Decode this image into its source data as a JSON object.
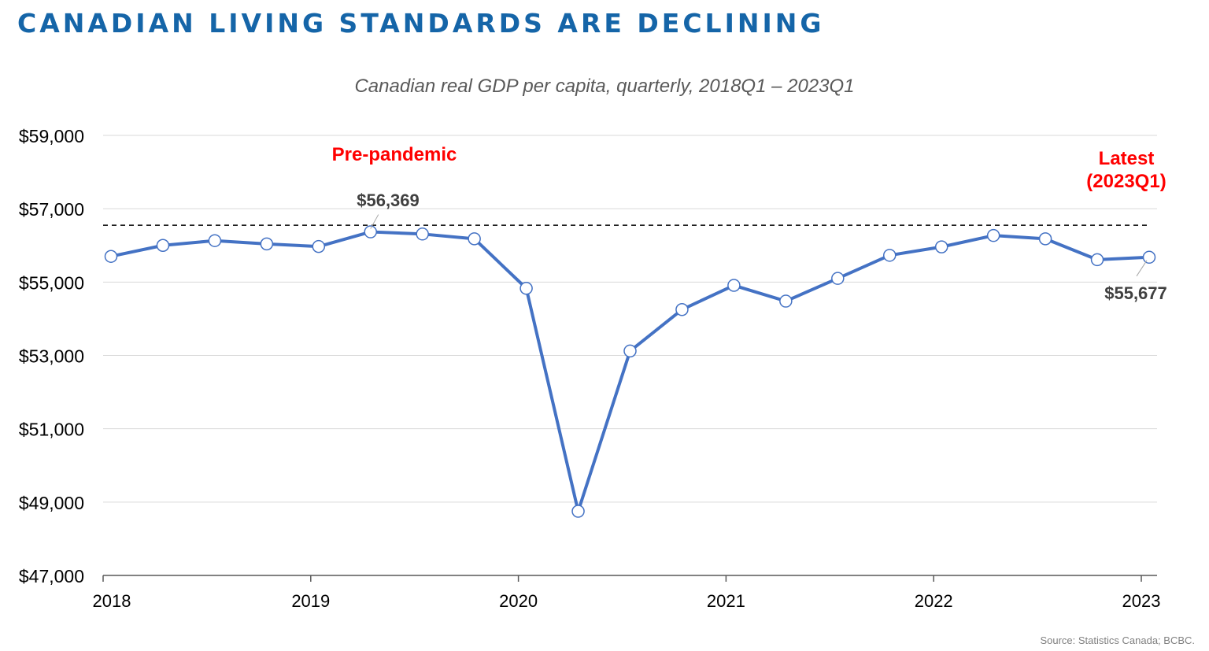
{
  "page": {
    "title": "CANADIAN LIVING STANDARDS ARE DECLINING",
    "source": "Source: Statistics Canada; BCBC."
  },
  "chart_data": {
    "type": "line",
    "title": "",
    "subtitle": "Canadian real GDP per capita, quarterly, 2018Q1 – 2023Q1",
    "xlabel": "",
    "ylabel": "",
    "ylim": [
      47000,
      59000
    ],
    "y_ticks": [
      47000,
      49000,
      51000,
      53000,
      55000,
      57000,
      59000
    ],
    "y_tick_labels": [
      "$47,000",
      "$49,000",
      "$51,000",
      "$53,000",
      "$55,000",
      "$57,000",
      "$59,000"
    ],
    "x_tick_labels": [
      "2018",
      "2019",
      "2020",
      "2021",
      "2022",
      "2023"
    ],
    "grid": true,
    "categories": [
      "2018Q1",
      "2018Q2",
      "2018Q3",
      "2018Q4",
      "2019Q1",
      "2019Q2",
      "2019Q3",
      "2019Q4",
      "2020Q1",
      "2020Q2",
      "2020Q3",
      "2020Q4",
      "2021Q1",
      "2021Q2",
      "2021Q3",
      "2021Q4",
      "2022Q1",
      "2022Q2",
      "2022Q3",
      "2022Q4",
      "2023Q1"
    ],
    "series": [
      {
        "values": [
          55700,
          56000,
          56130,
          56040,
          55970,
          56369,
          56310,
          56180,
          54830,
          48750,
          53120,
          54250,
          54910,
          54480,
          55100,
          55730,
          55960,
          56270,
          56180,
          55610,
          55677
        ],
        "color": "#4472c4"
      }
    ],
    "reference_line": {
      "value": 56550,
      "style": "dashed",
      "color": "#000000"
    },
    "annotations": [
      {
        "text": "Pre-pandemic",
        "color": "#ff0000"
      },
      {
        "text": "$56,369",
        "color": "#404040",
        "point": "2019Q2"
      },
      {
        "text": "Latest",
        "color": "#ff0000"
      },
      {
        "text": "(2023Q1)",
        "color": "#ff0000"
      },
      {
        "text": "$55,677",
        "color": "#404040",
        "point": "2023Q1"
      }
    ]
  }
}
